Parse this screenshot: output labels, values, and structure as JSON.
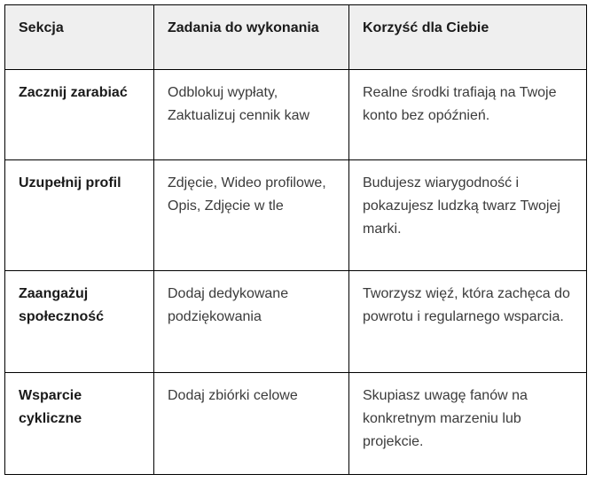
{
  "colors": {
    "border": "#000000",
    "header_background": "#efefef",
    "heading_text": "#1a1a1a",
    "body_text": "#3b3b3b",
    "page_background": "#ffffff"
  },
  "table": {
    "headers": [
      "Sekcja",
      "Zadania do wykonania",
      "Korzyść dla Ciebie"
    ],
    "rows": [
      {
        "section": "Zacznij zarabiać",
        "tasks": "Odblokuj wypłaty, Zaktualizuj cennik kaw",
        "benefit": "Realne środki trafiają na Twoje konto bez opóźnień."
      },
      {
        "section": "Uzupełnij profil",
        "tasks": "Zdjęcie, Wideo profilowe, Opis, Zdjęcie w tle",
        "benefit": "Budujesz wiarygodność i pokazujesz ludzką twarz Twojej marki."
      },
      {
        "section": "Zaangażuj społeczność",
        "tasks": "Dodaj dedykowane podziękowania",
        "benefit": "Tworzysz więź, która zachęca do powrotu i regularnego wsparcia."
      },
      {
        "section": "Wsparcie cykliczne",
        "tasks": "Dodaj zbiórki celowe",
        "benefit": "Skupiasz uwagę fanów na konkretnym marzeniu lub projekcie."
      }
    ]
  }
}
